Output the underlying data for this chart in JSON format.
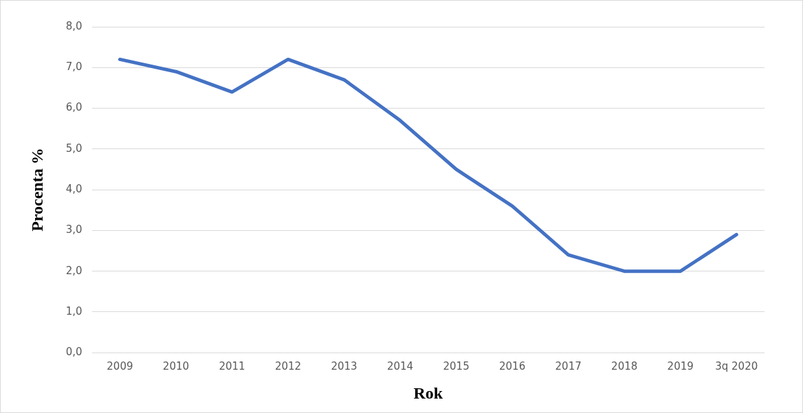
{
  "chart_data": {
    "type": "line",
    "xlabel": "Rok",
    "ylabel": "Procenta %",
    "categories": [
      "2009",
      "2010",
      "2011",
      "2012",
      "2013",
      "2014",
      "2015",
      "2016",
      "2017",
      "2018",
      "2019",
      "3q 2020"
    ],
    "series": [
      {
        "color": "#4472c4",
        "values": [
          7.2,
          6.9,
          6.4,
          7.2,
          6.7,
          5.7,
          4.5,
          3.6,
          2.4,
          2.0,
          2.0,
          2.9
        ]
      }
    ],
    "ylim": [
      0,
      8
    ],
    "yticks": [
      {
        "value": 0,
        "label": "0,0"
      },
      {
        "value": 1,
        "label": "1,0"
      },
      {
        "value": 2,
        "label": "2,0"
      },
      {
        "value": 3,
        "label": "3,0"
      },
      {
        "value": 4,
        "label": "4,0"
      },
      {
        "value": 5,
        "label": "5,0"
      },
      {
        "value": 6,
        "label": "6,0"
      },
      {
        "value": 7,
        "label": "7,0"
      },
      {
        "value": 8,
        "label": "8,0"
      }
    ],
    "grid": "y",
    "legend": false,
    "marker": "none",
    "line_style": "solid"
  }
}
